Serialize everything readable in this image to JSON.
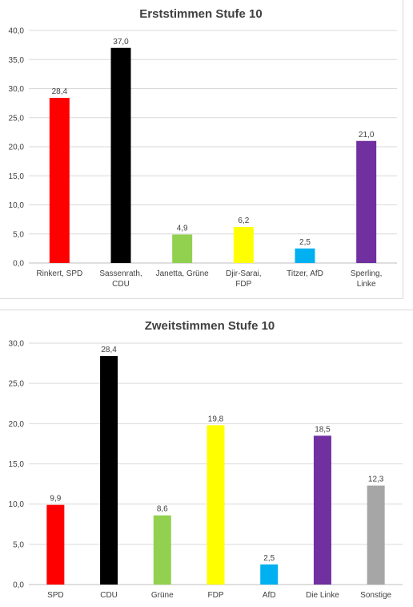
{
  "chart_data": [
    {
      "type": "bar",
      "title": "Erststimmen Stufe 10",
      "categories": [
        "Rinkert, SPD",
        "Sassenrath, CDU",
        "Janetta, Grüne",
        "Djir-Sarai, FDP",
        "Titzer, AfD",
        "Sperling, Linke"
      ],
      "values": [
        28.4,
        37.0,
        4.9,
        6.2,
        2.5,
        21.0
      ],
      "value_labels": [
        "28,4",
        "37,0",
        "4,9",
        "6,2",
        "2,5",
        "21,0"
      ],
      "colors": [
        "#ff0000",
        "#000000",
        "#92d050",
        "#ffff00",
        "#00b0f0",
        "#7030a0"
      ],
      "ylim": [
        0,
        40
      ],
      "yticks": [
        "0,0",
        "5,0",
        "10,0",
        "15,0",
        "20,0",
        "25,0",
        "30,0",
        "35,0",
        "40,0"
      ],
      "grid": true,
      "xlabel": "",
      "ylabel": ""
    },
    {
      "type": "bar",
      "title": "Zweitstimmen Stufe 10",
      "categories": [
        "SPD",
        "CDU",
        "Grüne",
        "FDP",
        "AfD",
        "Die Linke",
        "Sonstige"
      ],
      "values": [
        9.9,
        28.4,
        8.6,
        19.8,
        2.5,
        18.5,
        12.3
      ],
      "value_labels": [
        "9,9",
        "28,4",
        "8,6",
        "19,8",
        "2,5",
        "18,5",
        "12,3"
      ],
      "colors": [
        "#ff0000",
        "#000000",
        "#92d050",
        "#ffff00",
        "#00b0f0",
        "#7030a0",
        "#a6a6a6"
      ],
      "ylim": [
        0,
        30
      ],
      "yticks": [
        "0,0",
        "5,0",
        "10,0",
        "15,0",
        "20,0",
        "25,0",
        "30,0"
      ],
      "grid": true,
      "xlabel": "",
      "ylabel": ""
    }
  ]
}
